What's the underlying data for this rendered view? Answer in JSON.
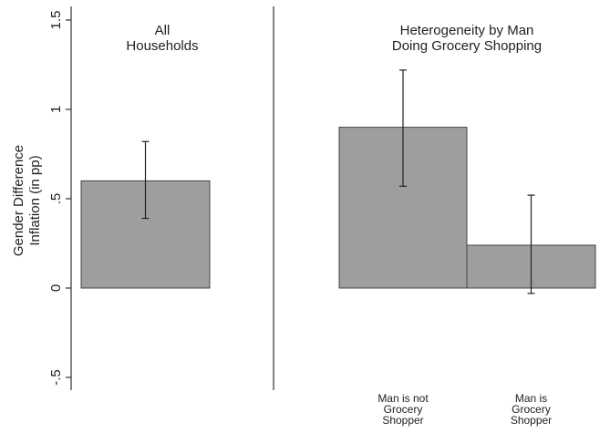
{
  "chart_data": {
    "type": "bar",
    "ylabel": [
      "Gender Difference",
      "Inflation  (in pp)"
    ],
    "ylim": [
      -0.55,
      1.55
    ],
    "yticks": [
      {
        "value": -0.5,
        "label": "-.5"
      },
      {
        "value": 0,
        "label": "0"
      },
      {
        "value": 0.5,
        "label": ".5"
      },
      {
        "value": 1,
        "label": "1"
      },
      {
        "value": 1.5,
        "label": "1.5"
      }
    ],
    "grid": false,
    "panels": [
      {
        "title": [
          "All",
          "Households"
        ],
        "bars": [
          {
            "category": [],
            "value": 0.6,
            "ci_low": 0.39,
            "ci_high": 0.82
          }
        ]
      },
      {
        "title": [
          "Heterogeneity by Man",
          "Doing Grocery Shopping"
        ],
        "bars": [
          {
            "category": [
              "Man is not",
              "Grocery",
              "Shopper"
            ],
            "value": 0.9,
            "ci_low": 0.57,
            "ci_high": 1.22
          },
          {
            "category": [
              "Man is",
              "Grocery",
              "Shopper"
            ],
            "value": 0.24,
            "ci_low": -0.03,
            "ci_high": 0.52
          }
        ]
      }
    ],
    "colors": {
      "bar_fill": "#9e9e9e",
      "bar_stroke": "#444444",
      "axis": "#333333"
    }
  }
}
